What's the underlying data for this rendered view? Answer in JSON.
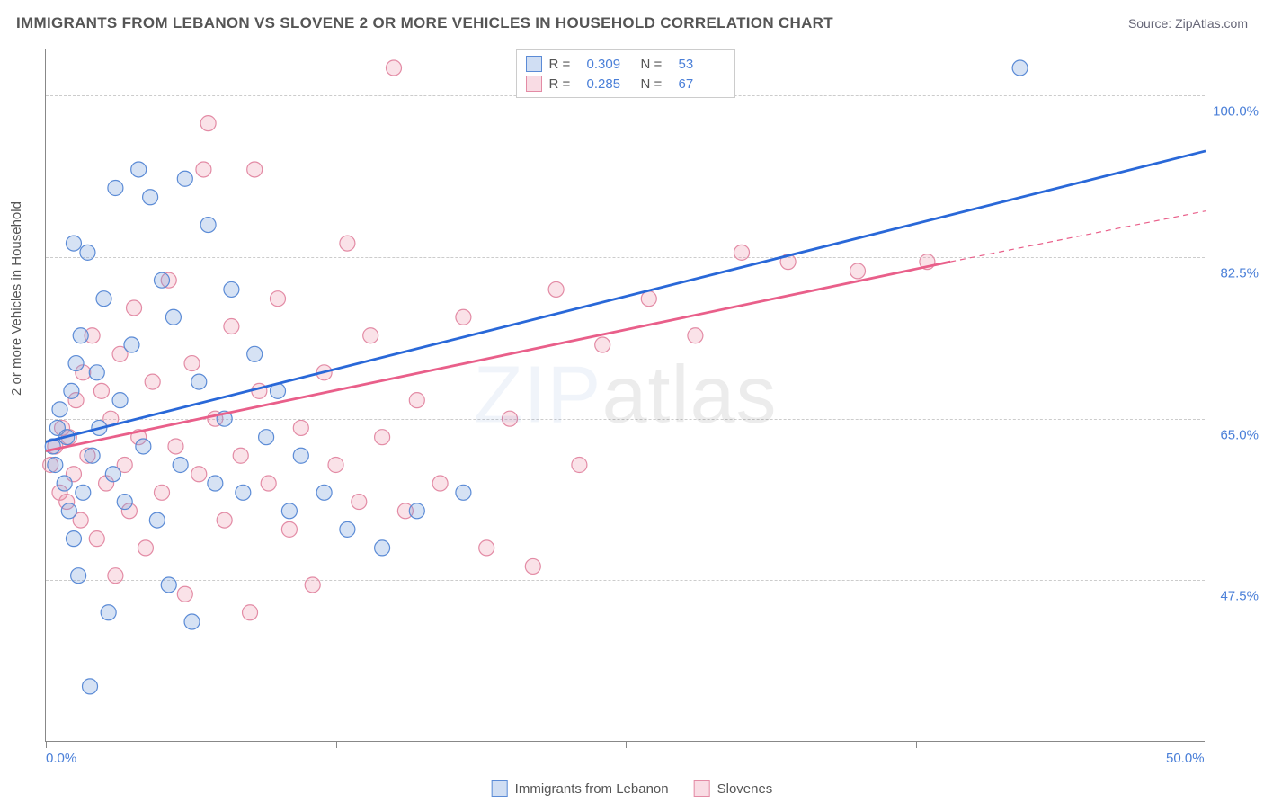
{
  "header": {
    "title": "IMMIGRANTS FROM LEBANON VS SLOVENE 2 OR MORE VEHICLES IN HOUSEHOLD CORRELATION CHART",
    "source": "Source: ZipAtlas.com"
  },
  "watermark": {
    "zip": "ZIP",
    "atlas": "atlas"
  },
  "chart": {
    "type": "scatter",
    "ylabel": "2 or more Vehicles in Household",
    "background_color": "#ffffff",
    "grid_color": "#cccccc",
    "axis_color": "#888888",
    "tick_label_color": "#4a7fd8",
    "label_fontsize": 15,
    "title_fontsize": 17,
    "xlim": [
      0,
      50
    ],
    "ylim": [
      30,
      105
    ],
    "xticks": [
      0,
      12.5,
      25,
      37.5,
      50
    ],
    "xtick_labels": {
      "first": "0.0%",
      "last": "50.0%"
    },
    "yticks": [
      47.5,
      65.0,
      82.5,
      100.0
    ],
    "ytick_labels": [
      "47.5%",
      "65.0%",
      "82.5%",
      "100.0%"
    ],
    "marker_radius": 8.5,
    "series": [
      {
        "name": "Immigrants from Lebanon",
        "key": "blue",
        "color_fill": "rgba(120,160,220,0.30)",
        "color_stroke": "#5b8bd6",
        "line_color": "#2968d8",
        "R": "0.309",
        "N": "53",
        "trend": {
          "x1": 0,
          "y1": 62.5,
          "x2": 50,
          "y2": 94.0
        },
        "points": [
          [
            0.3,
            62
          ],
          [
            0.4,
            60
          ],
          [
            0.5,
            64
          ],
          [
            0.6,
            66
          ],
          [
            0.8,
            58
          ],
          [
            0.9,
            63
          ],
          [
            1.0,
            55
          ],
          [
            1.1,
            68
          ],
          [
            1.2,
            52
          ],
          [
            1.3,
            71
          ],
          [
            1.4,
            48
          ],
          [
            1.5,
            74
          ],
          [
            1.6,
            57
          ],
          [
            1.8,
            83
          ],
          [
            1.9,
            36
          ],
          [
            2.0,
            61
          ],
          [
            2.2,
            70
          ],
          [
            2.3,
            64
          ],
          [
            2.5,
            78
          ],
          [
            2.7,
            44
          ],
          [
            2.9,
            59
          ],
          [
            3.0,
            90
          ],
          [
            3.2,
            67
          ],
          [
            3.4,
            56
          ],
          [
            3.7,
            73
          ],
          [
            4.0,
            92
          ],
          [
            4.2,
            62
          ],
          [
            4.5,
            89
          ],
          [
            4.8,
            54
          ],
          [
            5.0,
            80
          ],
          [
            5.3,
            47
          ],
          [
            5.5,
            76
          ],
          [
            5.8,
            60
          ],
          [
            6.0,
            91
          ],
          [
            6.3,
            43
          ],
          [
            6.6,
            69
          ],
          [
            7.0,
            86
          ],
          [
            7.3,
            58
          ],
          [
            7.7,
            65
          ],
          [
            8.0,
            79
          ],
          [
            8.5,
            57
          ],
          [
            9.0,
            72
          ],
          [
            9.5,
            63
          ],
          [
            10,
            68
          ],
          [
            10.5,
            55
          ],
          [
            11,
            61
          ],
          [
            12,
            57
          ],
          [
            13,
            53
          ],
          [
            14.5,
            51
          ],
          [
            16,
            55
          ],
          [
            18,
            57
          ],
          [
            42,
            103
          ],
          [
            1.2,
            84
          ]
        ]
      },
      {
        "name": "Slovenes",
        "key": "pink",
        "color_fill": "rgba(235,140,165,0.25)",
        "color_stroke": "#e38ba5",
        "line_color": "#e95f8a",
        "R": "0.285",
        "N": "67",
        "trend": {
          "x1": 0,
          "y1": 61.5,
          "x2": 39,
          "y2": 82.0
        },
        "trend_dash": {
          "x1": 39,
          "y1": 82.0,
          "x2": 50,
          "y2": 87.5
        },
        "points": [
          [
            0.2,
            60
          ],
          [
            0.4,
            62
          ],
          [
            0.6,
            57
          ],
          [
            0.7,
            64
          ],
          [
            0.9,
            56
          ],
          [
            1.0,
            63
          ],
          [
            1.2,
            59
          ],
          [
            1.3,
            67
          ],
          [
            1.5,
            54
          ],
          [
            1.6,
            70
          ],
          [
            1.8,
            61
          ],
          [
            2.0,
            74
          ],
          [
            2.2,
            52
          ],
          [
            2.4,
            68
          ],
          [
            2.6,
            58
          ],
          [
            2.8,
            65
          ],
          [
            3.0,
            48
          ],
          [
            3.2,
            72
          ],
          [
            3.4,
            60
          ],
          [
            3.6,
            55
          ],
          [
            3.8,
            77
          ],
          [
            4.0,
            63
          ],
          [
            4.3,
            51
          ],
          [
            4.6,
            69
          ],
          [
            5.0,
            57
          ],
          [
            5.3,
            80
          ],
          [
            5.6,
            62
          ],
          [
            6.0,
            46
          ],
          [
            6.3,
            71
          ],
          [
            6.6,
            59
          ],
          [
            7.0,
            97
          ],
          [
            7.3,
            65
          ],
          [
            7.7,
            54
          ],
          [
            8.0,
            75
          ],
          [
            8.4,
            61
          ],
          [
            8.8,
            44
          ],
          [
            9.2,
            68
          ],
          [
            9.6,
            58
          ],
          [
            10,
            78
          ],
          [
            10.5,
            53
          ],
          [
            11,
            64
          ],
          [
            11.5,
            47
          ],
          [
            12,
            70
          ],
          [
            12.5,
            60
          ],
          [
            13,
            84
          ],
          [
            13.5,
            56
          ],
          [
            14,
            74
          ],
          [
            14.5,
            63
          ],
          [
            15,
            103
          ],
          [
            15.5,
            55
          ],
          [
            16,
            67
          ],
          [
            17,
            58
          ],
          [
            18,
            76
          ],
          [
            19,
            51
          ],
          [
            20,
            65
          ],
          [
            21,
            49
          ],
          [
            22,
            79
          ],
          [
            23,
            60
          ],
          [
            24,
            73
          ],
          [
            26,
            78
          ],
          [
            28,
            74
          ],
          [
            30,
            83
          ],
          [
            32,
            82
          ],
          [
            35,
            81
          ],
          [
            38,
            82
          ],
          [
            9,
            92
          ],
          [
            6.8,
            92
          ]
        ]
      }
    ],
    "legend_bottom": [
      {
        "swatch": "blue",
        "label": "Immigrants from Lebanon"
      },
      {
        "swatch": "pink",
        "label": "Slovenes"
      }
    ],
    "legend_top_labels": {
      "R": "R =",
      "N": "N ="
    }
  }
}
